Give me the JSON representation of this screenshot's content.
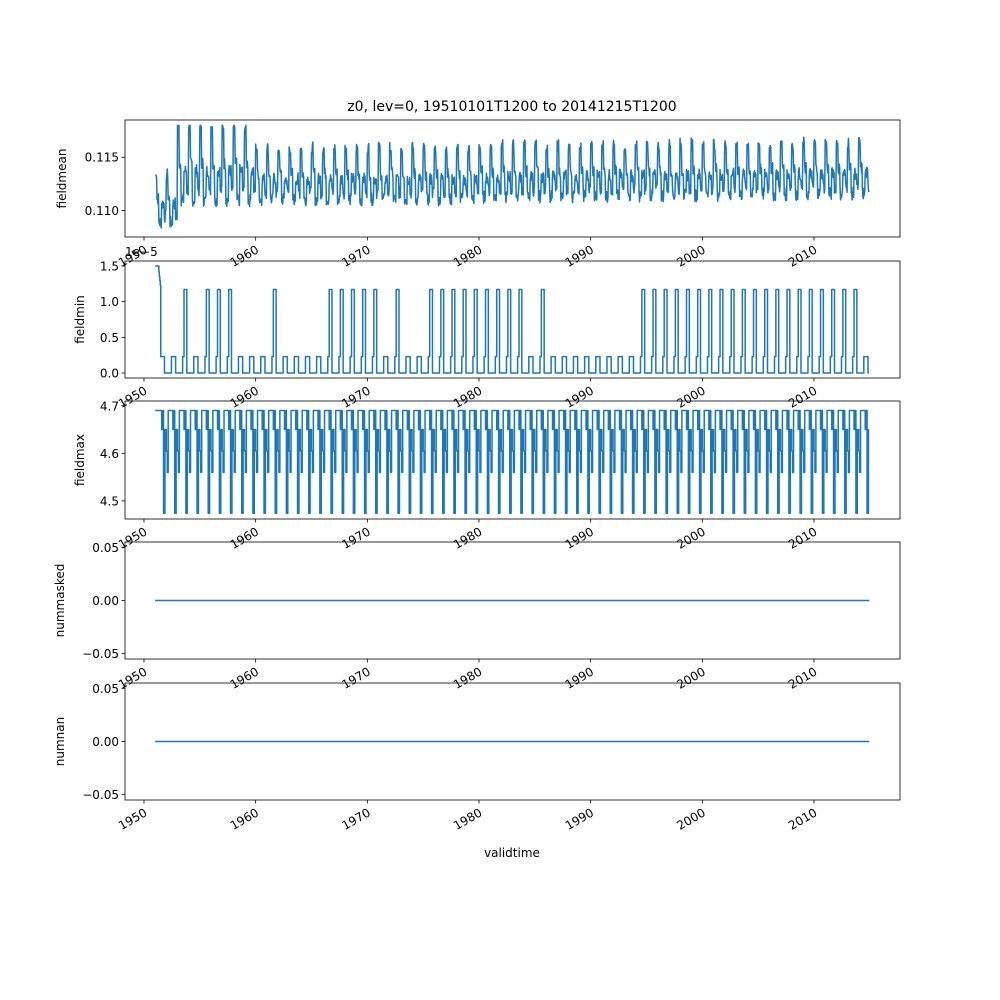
{
  "chart_data": {
    "type": "line",
    "title": "z0, lev=0, 19510101T1200 to 20141215T1200",
    "shared_xlabel": "validtime",
    "x_start": "1951-01-01",
    "x_end": "2014-12-15",
    "xlim": [
      1948.3,
      2017.7
    ],
    "x_ticks": [
      1950,
      1960,
      1970,
      1980,
      1990,
      2000,
      2010
    ],
    "x_tick_labels": [
      "1950",
      "1960",
      "1970",
      "1980",
      "1990",
      "2000",
      "2010"
    ],
    "line_color": "#1f77b4",
    "panels": [
      {
        "ylabel": "fieldmean",
        "ylim": [
          0.1075,
          0.1185
        ],
        "y_ticks": [
          0.11,
          0.115
        ],
        "y_tick_labels": [
          "0.110",
          "0.115"
        ],
        "offset_text": "",
        "pattern": "seasonal-mean",
        "y_min_seen": 0.108,
        "y_max_seen": 0.118
      },
      {
        "ylabel": "fieldmin",
        "ylim": [
          -0.07,
          1.57
        ],
        "y_ticks": [
          0.0,
          0.5,
          1.0,
          1.5
        ],
        "y_tick_labels": [
          "0.0",
          "0.5",
          "1.0",
          "1.5"
        ],
        "offset_text": "1e−5",
        "pattern": "switching-min",
        "levels": [
          0.0,
          0.23,
          1.17,
          1.5
        ]
      },
      {
        "ylabel": "fieldmax",
        "ylim": [
          4.462,
          4.71
        ],
        "y_ticks": [
          4.5,
          4.6,
          4.7
        ],
        "y_tick_labels": [
          "4.5",
          "4.6",
          "4.7"
        ],
        "offset_text": "",
        "pattern": "seasonal-max",
        "levels": [
          4.474,
          4.56,
          4.605,
          4.65,
          4.69
        ]
      },
      {
        "ylabel": "nummasked",
        "ylim": [
          -0.055,
          0.055
        ],
        "y_ticks": [
          -0.05,
          0.0,
          0.05
        ],
        "y_tick_labels": [
          "−0.05",
          "0.00",
          "0.05"
        ],
        "offset_text": "",
        "pattern": "constant",
        "value": 0.0
      },
      {
        "ylabel": "numnan",
        "ylim": [
          -0.055,
          0.055
        ],
        "y_ticks": [
          -0.05,
          0.0,
          0.05
        ],
        "y_tick_labels": [
          "−0.05",
          "0.00",
          "0.05"
        ],
        "offset_text": "",
        "pattern": "constant",
        "value": 0.0
      }
    ]
  }
}
